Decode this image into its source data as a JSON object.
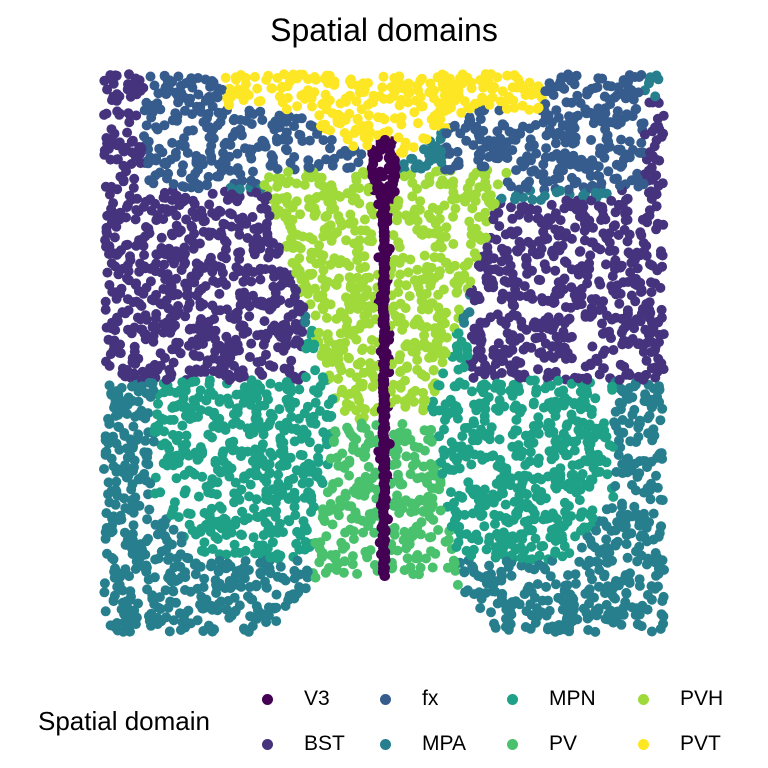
{
  "chart_data": {
    "type": "scatter",
    "title": "Spatial domains",
    "xlabel": "",
    "ylabel": "",
    "axes_visible": false,
    "grid": false,
    "legend": {
      "title": "Spatial domain",
      "placement": "bottom",
      "columns": 4
    },
    "series": [
      {
        "name": "V3",
        "color": "#440154"
      },
      {
        "name": "BST",
        "color": "#46337E"
      },
      {
        "name": "fx",
        "color": "#365C8D"
      },
      {
        "name": "MPA",
        "color": "#277F8E"
      },
      {
        "name": "MPN",
        "color": "#1FA187"
      },
      {
        "name": "PV",
        "color": "#4AC16D"
      },
      {
        "name": "PVH",
        "color": "#9FDA3A"
      },
      {
        "name": "PVT",
        "color": "#FDE725"
      }
    ],
    "point_layout": "scattered cells filling a roughly square tissue section; PVT at the top center, fx in upper-left and upper-right corners, BST in the left and right upper-middle, PVH forming a V-shape around a central vertical V3 strip, MPN and PV in the lower center, MPA in the lower-left and lower-right"
  }
}
